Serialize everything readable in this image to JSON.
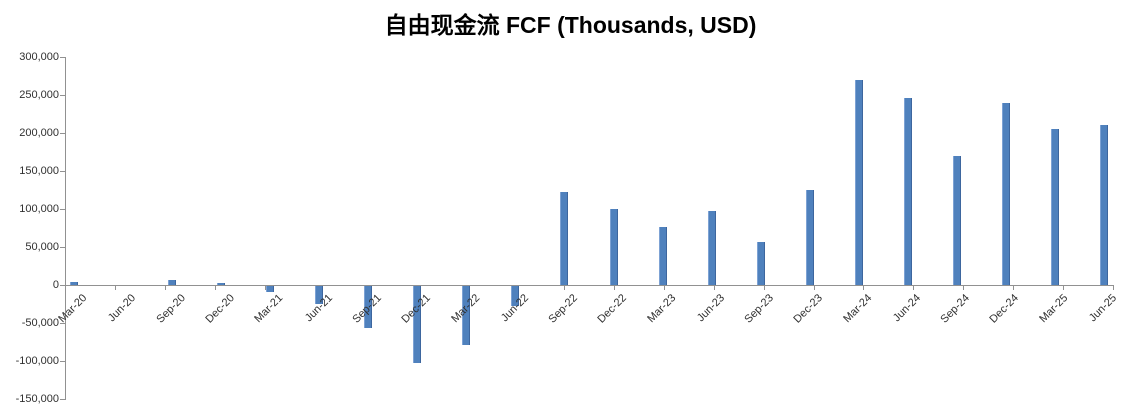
{
  "chart_data": {
    "type": "bar",
    "title": "自由现金流 FCF (Thousands, USD)",
    "xlabel": "",
    "ylabel": "",
    "categories": [
      "Mar-20",
      "Jun-20",
      "Sep-20",
      "Dec-20",
      "Mar-21",
      "Jun-21",
      "Sep-21",
      "Dec-21",
      "Mar-22",
      "Jun-22",
      "Sep-22",
      "Dec-22",
      "Mar-23",
      "Jun-23",
      "Sep-23",
      "Dec-23",
      "Mar-24",
      "Jun-24",
      "Sep-24",
      "Dec-24",
      "Mar-25",
      "Jun-25"
    ],
    "values": [
      4000,
      0,
      6000,
      2000,
      -8000,
      -24000,
      -55000,
      -101000,
      -78000,
      -26000,
      123000,
      100000,
      76000,
      98000,
      56000,
      125000,
      270000,
      246000,
      170000,
      240000,
      205000,
      211000
    ],
    "ylim": [
      -150000,
      300000
    ],
    "ytick_step": 50000,
    "ytick_labels": [
      "300,000",
      "250,000",
      "200,000",
      "150,000",
      "100,000",
      "50,000",
      "0",
      "-50,000",
      "-100,000",
      "-150,000"
    ],
    "ytick_values": [
      300000,
      250000,
      200000,
      150000,
      100000,
      50000,
      0,
      -50000,
      -100000,
      -150000
    ],
    "grid": false,
    "legend": "none",
    "bar_color": "#4F81BD",
    "axis_color": "#919191",
    "label_color": "#303030"
  }
}
